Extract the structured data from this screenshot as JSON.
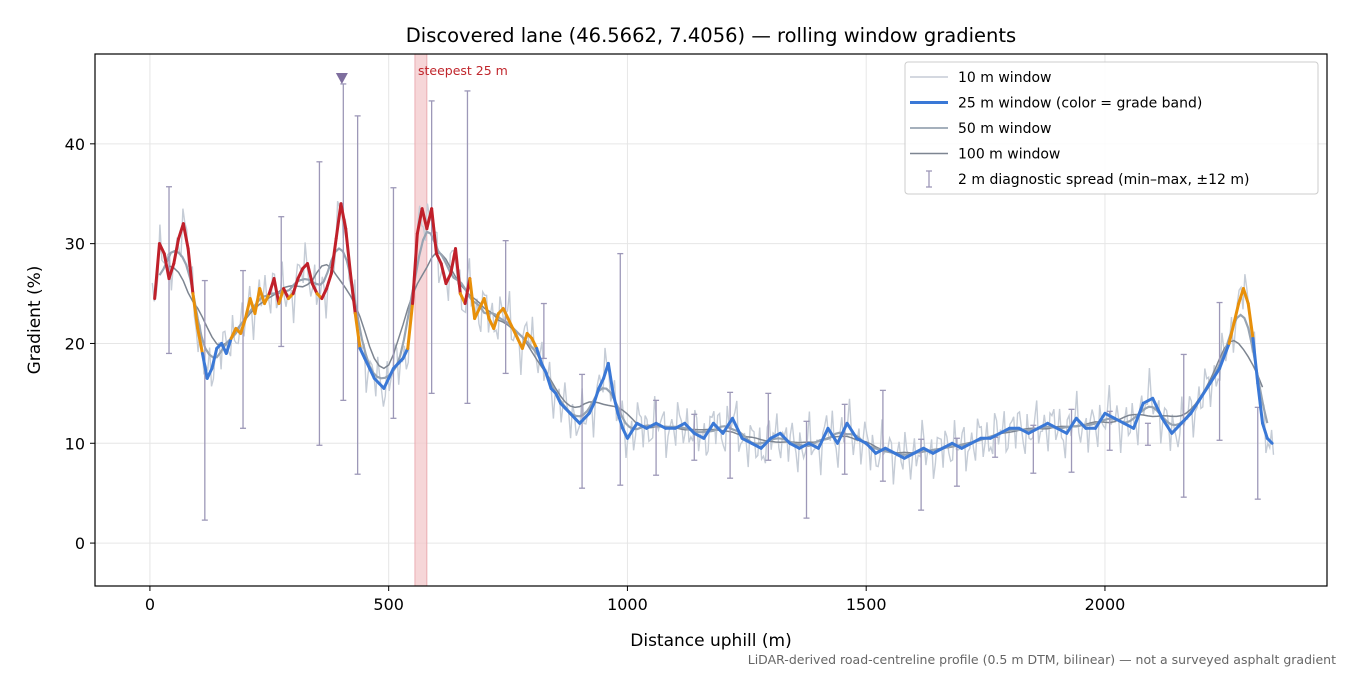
{
  "chart_data": {
    "type": "line",
    "title": "Discovered lane (46.5662, 7.4056) — rolling window gradients",
    "xlabel": "Distance uphill (m)",
    "ylabel": "Gradient (%)",
    "xlim": [
      -115,
      2465
    ],
    "ylim": [
      -4.3,
      49
    ],
    "xticks": [
      0,
      500,
      1000,
      1500,
      2000
    ],
    "yticks": [
      0,
      10,
      20,
      30,
      40
    ],
    "grid": true,
    "legend_position": "top-right",
    "footnote": "LiDAR-derived road-centreline profile (0.5 m DTM, bilinear) — not a surveyed asphalt gradient",
    "annotations": {
      "steepest_label": "steepest 25 m",
      "steepest_range": [
        555,
        580
      ],
      "marker": {
        "x": 402,
        "y": 46.5
      }
    },
    "colors": {
      "w10": "#c5ccd6",
      "w50": "#98a4b2",
      "w100": "#7d8591",
      "band_low": "#3a78d6",
      "band_mid": "#e8900a",
      "band_high": "#c0202a",
      "spread": "#9d98b8",
      "marker": "#7e6e9e",
      "steepest_band": "#f3c8cb"
    },
    "legend": [
      {
        "name": "10 m window",
        "style": "w10"
      },
      {
        "name": "25 m window (color = grade band)",
        "style": "w25"
      },
      {
        "name": "50 m window",
        "style": "w50"
      },
      {
        "name": "100 m window",
        "style": "w100"
      },
      {
        "name": "2 m diagnostic spread (min–max, ±12 m)",
        "style": "spread"
      }
    ],
    "grade_bands": {
      "mid_min": 20,
      "high_min": 25
    },
    "series_25m": {
      "name": "25 m window (color = grade band)",
      "x": [
        10,
        20,
        30,
        40,
        50,
        60,
        70,
        80,
        90,
        100,
        110,
        120,
        130,
        140,
        150,
        160,
        170,
        180,
        190,
        200,
        210,
        220,
        230,
        240,
        250,
        260,
        270,
        280,
        290,
        300,
        310,
        320,
        330,
        340,
        350,
        360,
        370,
        380,
        390,
        400,
        410,
        420,
        430,
        440,
        450,
        460,
        470,
        480,
        490,
        500,
        510,
        520,
        530,
        540,
        550,
        560,
        570,
        580,
        590,
        600,
        610,
        620,
        630,
        640,
        650,
        660,
        670,
        680,
        690,
        700,
        710,
        720,
        730,
        740,
        750,
        760,
        770,
        780,
        790,
        800,
        810,
        820,
        830,
        840,
        850,
        860,
        870,
        880,
        890,
        900,
        910,
        920,
        930,
        940,
        950,
        960,
        970,
        980,
        990,
        1000,
        1020,
        1040,
        1060,
        1080,
        1100,
        1120,
        1140,
        1160,
        1180,
        1200,
        1220,
        1240,
        1260,
        1280,
        1300,
        1320,
        1340,
        1360,
        1380,
        1400,
        1420,
        1440,
        1460,
        1480,
        1500,
        1520,
        1540,
        1560,
        1580,
        1600,
        1620,
        1640,
        1660,
        1680,
        1700,
        1720,
        1740,
        1760,
        1780,
        1800,
        1820,
        1840,
        1860,
        1880,
        1900,
        1920,
        1940,
        1960,
        1980,
        2000,
        2020,
        2040,
        2060,
        2080,
        2100,
        2120,
        2140,
        2160,
        2180,
        2200,
        2220,
        2240,
        2260,
        2280,
        2290,
        2300,
        2310,
        2320,
        2330,
        2340,
        2350
      ],
      "y": [
        24.5,
        30.0,
        29.0,
        26.5,
        28.0,
        30.5,
        32.0,
        29.5,
        25.0,
        21.5,
        19.0,
        16.5,
        17.5,
        19.5,
        20.0,
        19.0,
        20.5,
        21.5,
        21.0,
        22.5,
        24.5,
        23.0,
        25.5,
        24.0,
        25.0,
        26.5,
        24.0,
        25.5,
        24.5,
        25.0,
        26.5,
        27.5,
        28.0,
        26.0,
        25.0,
        24.5,
        25.5,
        27.0,
        30.5,
        34.0,
        31.5,
        27.0,
        23.0,
        19.5,
        18.5,
        17.5,
        16.5,
        16.0,
        15.5,
        16.5,
        17.5,
        18.0,
        18.5,
        19.5,
        24.0,
        31.0,
        33.5,
        31.5,
        33.5,
        29.0,
        28.0,
        26.0,
        27.0,
        29.5,
        25.0,
        24.0,
        26.5,
        22.5,
        23.5,
        24.5,
        22.5,
        21.5,
        23.0,
        23.5,
        22.5,
        21.5,
        20.5,
        19.5,
        21.0,
        20.5,
        19.5,
        18.0,
        17.0,
        15.5,
        15.0,
        14.0,
        13.5,
        13.0,
        12.5,
        12.0,
        12.5,
        13.0,
        14.0,
        15.5,
        16.5,
        18.0,
        15.0,
        13.0,
        11.5,
        10.5,
        12.0,
        11.5,
        12.0,
        11.5,
        11.5,
        12.0,
        11.0,
        10.5,
        12.0,
        11.0,
        12.5,
        10.5,
        10.0,
        9.5,
        10.5,
        11.0,
        10.0,
        9.5,
        10.0,
        9.5,
        11.5,
        10.0,
        12.0,
        10.5,
        10.0,
        9.0,
        9.5,
        9.0,
        8.5,
        9.0,
        9.5,
        9.0,
        9.5,
        10.0,
        9.5,
        10.0,
        10.5,
        10.5,
        11.0,
        11.5,
        11.5,
        11.0,
        11.5,
        12.0,
        11.5,
        11.0,
        12.5,
        11.5,
        11.5,
        13.0,
        12.5,
        12.0,
        11.5,
        14.0,
        14.5,
        12.5,
        11.0,
        12.0,
        13.0,
        14.5,
        16.0,
        17.5,
        20.0,
        24.0,
        25.5,
        24.0,
        20.5,
        16.0,
        12.0,
        10.5,
        10.0
      ]
    },
    "series_10m": {
      "name": "10 m window"
    },
    "series_50m": {
      "name": "50 m window"
    },
    "series_100m": {
      "name": "100 m window"
    },
    "spread_bars": [
      {
        "x": 40,
        "min": 19.0,
        "max": 35.7
      },
      {
        "x": 115,
        "min": 2.3,
        "max": 26.3
      },
      {
        "x": 195,
        "min": 11.5,
        "max": 27.3
      },
      {
        "x": 275,
        "min": 19.7,
        "max": 32.7
      },
      {
        "x": 355,
        "min": 9.8,
        "max": 38.2
      },
      {
        "x": 405,
        "min": 14.3,
        "max": 46.0
      },
      {
        "x": 435,
        "min": 6.9,
        "max": 42.8
      },
      {
        "x": 510,
        "min": 12.5,
        "max": 35.6
      },
      {
        "x": 590,
        "min": 15.0,
        "max": 44.3
      },
      {
        "x": 665,
        "min": 14.0,
        "max": 45.3
      },
      {
        "x": 745,
        "min": 17.0,
        "max": 30.3
      },
      {
        "x": 825,
        "min": 18.5,
        "max": 24.0
      },
      {
        "x": 905,
        "min": 5.5,
        "max": 16.9
      },
      {
        "x": 985,
        "min": 5.8,
        "max": 29.0
      },
      {
        "x": 1060,
        "min": 6.8,
        "max": 14.3
      },
      {
        "x": 1140,
        "min": 8.3,
        "max": 12.9
      },
      {
        "x": 1215,
        "min": 6.5,
        "max": 15.1
      },
      {
        "x": 1295,
        "min": 8.3,
        "max": 15.0
      },
      {
        "x": 1375,
        "min": 2.5,
        "max": 12.2
      },
      {
        "x": 1455,
        "min": 6.9,
        "max": 13.9
      },
      {
        "x": 1535,
        "min": 6.2,
        "max": 15.3
      },
      {
        "x": 1615,
        "min": 3.3,
        "max": 10.4
      },
      {
        "x": 1690,
        "min": 5.7,
        "max": 10.5
      },
      {
        "x": 1770,
        "min": 8.6,
        "max": 10.6
      },
      {
        "x": 1850,
        "min": 7.0,
        "max": 11.8
      },
      {
        "x": 1930,
        "min": 7.1,
        "max": 13.4
      },
      {
        "x": 2010,
        "min": 9.3,
        "max": 13.2
      },
      {
        "x": 2090,
        "min": 9.8,
        "max": 12.0
      },
      {
        "x": 2165,
        "min": 4.6,
        "max": 18.9
      },
      {
        "x": 2240,
        "min": 10.3,
        "max": 24.1
      },
      {
        "x": 2320,
        "min": 4.4,
        "max": 13.6
      }
    ]
  }
}
